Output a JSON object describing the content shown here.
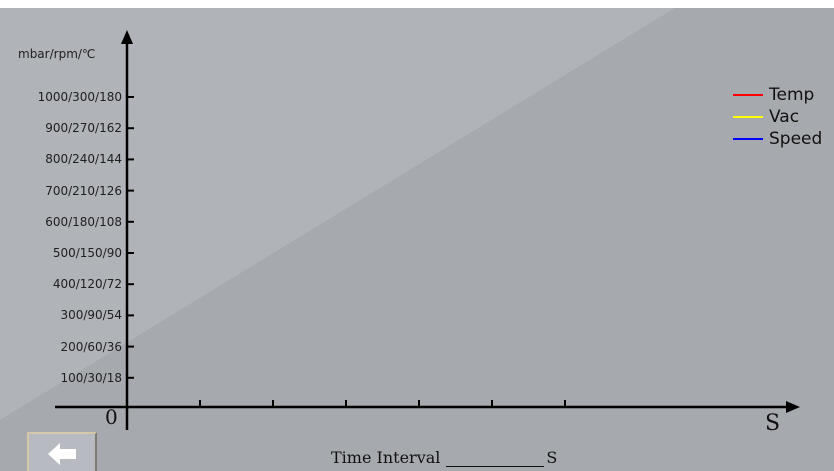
{
  "colors": {
    "background_light": "#b0b3b8",
    "background_dark": "#a6a9ad",
    "axis": "#000000",
    "temp": "#ff0000",
    "vac": "#ffff00",
    "speed": "#0000ff"
  },
  "chart": {
    "y_unit_label": "mbar/rpm/℃",
    "y_tick_labels": [
      "1000/300/180",
      "900/270/162",
      "800/240/144",
      "700/210/126",
      "600/180/108",
      "500/150/90",
      "400/120/72",
      "300/90/54",
      "200/60/36",
      "100/30/18"
    ],
    "origin_label": "0",
    "x_unit_label": "S",
    "x_tick_count": 6,
    "legend": [
      {
        "name": "Temp",
        "color": "#ff0000"
      },
      {
        "name": "Vac",
        "color": "#ffff00"
      },
      {
        "name": "Speed",
        "color": "#0000ff"
      }
    ]
  },
  "time_interval": {
    "label": "Time Interval",
    "value": "",
    "unit": "S"
  },
  "back_button": {
    "icon": "arrow-left-icon"
  }
}
